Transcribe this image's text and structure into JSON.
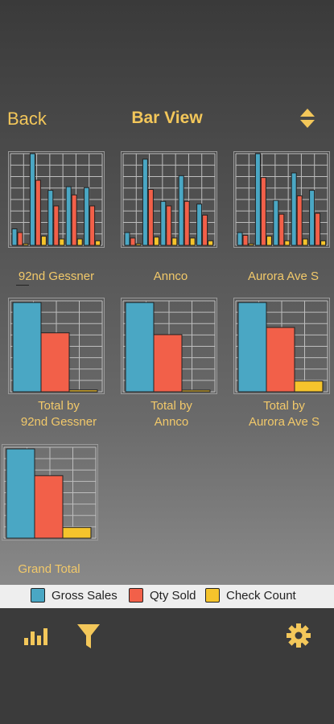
{
  "header": {
    "back_label": "Back",
    "title": "Bar View",
    "sort_icon": "sort-up-down-icon"
  },
  "colors": {
    "gross": "#4aa7c4",
    "qty": "#f26049",
    "check": "#f5c42c",
    "accent": "#f3c75a",
    "grid": "#bdbdbd"
  },
  "store_charts": [
    {
      "label": "92nd Gessner",
      "gross": [
        0.18,
        1.0,
        0.6,
        0.64,
        0.63
      ],
      "qty": [
        0.14,
        0.71,
        0.43,
        0.55,
        0.43
      ],
      "check": [
        0.01,
        0.1,
        0.07,
        0.07,
        0.05
      ]
    },
    {
      "label": "Annco",
      "gross": [
        0.14,
        0.94,
        0.48,
        0.76,
        0.45
      ],
      "qty": [
        0.08,
        0.61,
        0.43,
        0.48,
        0.33
      ],
      "check": [
        0.01,
        0.09,
        0.08,
        0.08,
        0.05
      ]
    },
    {
      "label": "Aurora Ave S",
      "gross": [
        0.14,
        1.0,
        0.49,
        0.79,
        0.6
      ],
      "qty": [
        0.11,
        0.74,
        0.34,
        0.54,
        0.35
      ],
      "check": [
        0.01,
        0.1,
        0.05,
        0.07,
        0.05
      ]
    }
  ],
  "total_charts": [
    {
      "label_line1": "Total by",
      "label_line2": "92nd Gessner",
      "values": [
        1.0,
        0.66,
        0.02
      ]
    },
    {
      "label_line1": "Total by",
      "label_line2": "Annco",
      "values": [
        1.0,
        0.64,
        0.01
      ]
    },
    {
      "label_line1": "Total by",
      "label_line2": "Aurora Ave S",
      "values": [
        1.0,
        0.72,
        0.12
      ]
    }
  ],
  "grand_total": {
    "label": "Grand Total",
    "values": [
      1.0,
      0.7,
      0.12
    ]
  },
  "legend": [
    {
      "label": "Gross Sales",
      "color": "#4aa7c4"
    },
    {
      "label": "Qty Sold",
      "color": "#f26049"
    },
    {
      "label": "Check Count",
      "color": "#f5c42c"
    }
  ],
  "toolbar": {
    "left_icons": [
      "bar-chart-icon",
      "filter-icon"
    ],
    "right_icon": "gear-icon"
  }
}
